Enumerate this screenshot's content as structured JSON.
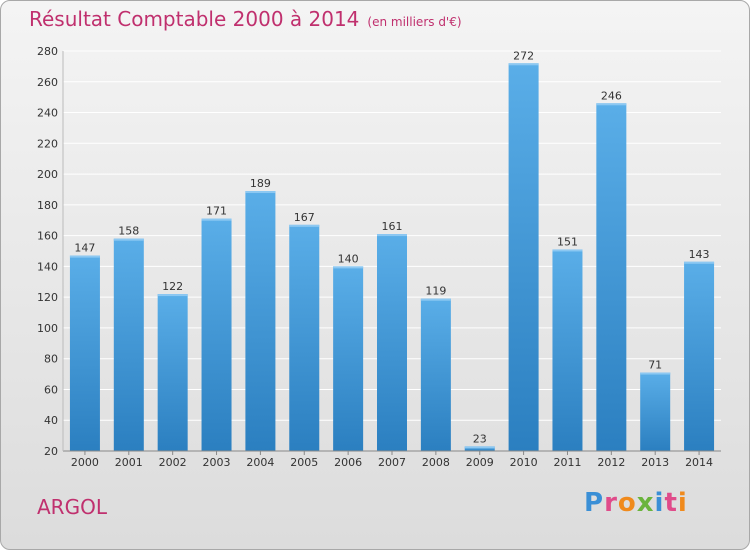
{
  "title": "Résultat Comptable 2000 à 2014",
  "subtitle": "(en milliers d'€)",
  "commune": "ARGOL",
  "logo": "Proxiti",
  "colors": {
    "title": "#c0306e",
    "bar_top": "#5aaee8",
    "bar_bottom": "#2b7fc0",
    "grid": "#ffffff"
  },
  "chart_data": {
    "type": "bar",
    "title": "Résultat Comptable 2000 à 2014",
    "subtitle": "(en milliers d'€)",
    "xlabel": "",
    "ylabel": "",
    "categories": [
      "2000",
      "2001",
      "2002",
      "2003",
      "2004",
      "2005",
      "2006",
      "2007",
      "2008",
      "2009",
      "2010",
      "2011",
      "2012",
      "2013",
      "2014"
    ],
    "values": [
      147,
      158,
      122,
      171,
      189,
      167,
      140,
      161,
      119,
      23,
      272,
      151,
      246,
      71,
      143
    ],
    "ylim": [
      20,
      280
    ],
    "yticks": [
      20,
      40,
      60,
      80,
      100,
      120,
      140,
      160,
      180,
      200,
      220,
      240,
      260,
      280
    ],
    "grid": true,
    "legend": "none"
  }
}
